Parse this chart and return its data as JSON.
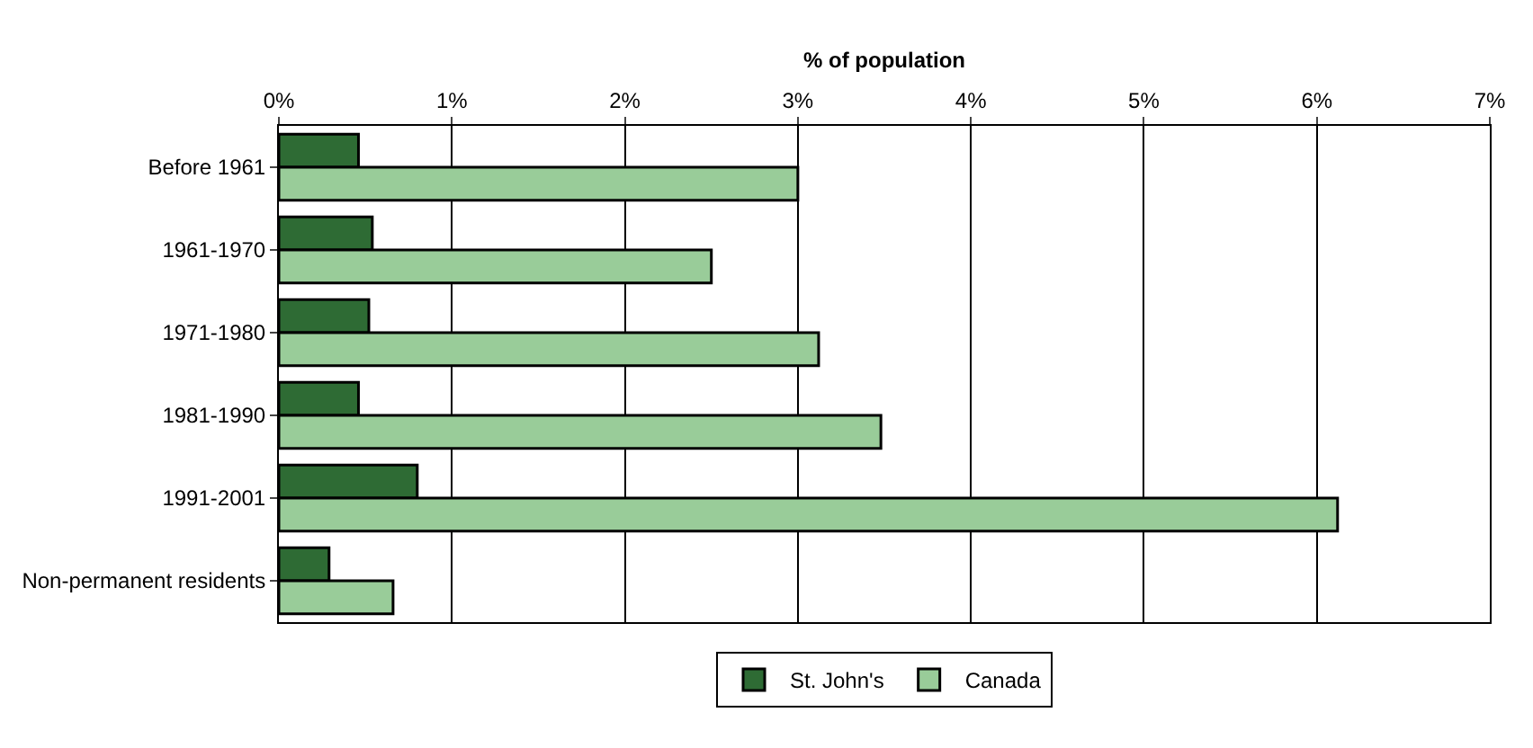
{
  "chart_data": {
    "type": "bar",
    "orientation": "horizontal",
    "xlabel": "% of population",
    "categories": [
      "Before 1961",
      "1961-1970",
      "1971-1980",
      "1981-1990",
      "1991-2001",
      "Non-permanent residents"
    ],
    "series": [
      {
        "name": "St. John's",
        "color": "#2e6b34",
        "values": [
          0.46,
          0.54,
          0.52,
          0.46,
          0.8,
          0.29
        ]
      },
      {
        "name": "Canada",
        "color": "#99cc99",
        "values": [
          3.0,
          2.5,
          3.12,
          3.48,
          6.12,
          0.66
        ]
      }
    ],
    "xlim": [
      0,
      7
    ],
    "xticks": [
      {
        "value": 0,
        "label": "0%"
      },
      {
        "value": 1,
        "label": "1%"
      },
      {
        "value": 2,
        "label": "2%"
      },
      {
        "value": 3,
        "label": "3%"
      },
      {
        "value": 4,
        "label": "4%"
      },
      {
        "value": 5,
        "label": "5%"
      },
      {
        "value": 6,
        "label": "6%"
      },
      {
        "value": 7,
        "label": "7%"
      }
    ],
    "grid": "x",
    "legend": "bottom"
  }
}
